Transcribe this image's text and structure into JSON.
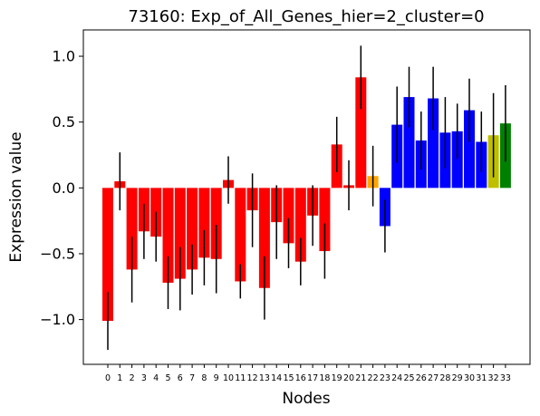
{
  "chart_data": {
    "type": "bar",
    "title": "73160: Exp_of_All_Genes_hier=2_cluster=0",
    "xlabel": "Nodes",
    "ylabel": "Expression value",
    "ylim": [
      -1.34,
      1.2
    ],
    "yticks": [
      -1.0,
      -0.5,
      0.0,
      0.5,
      1.0
    ],
    "ytick_labels": [
      "−1.0",
      "−0.5",
      "0.0",
      "0.5",
      "1.0"
    ],
    "grid": false,
    "legend": "none",
    "categories": [
      "0",
      "1",
      "2",
      "3",
      "4",
      "5",
      "6",
      "7",
      "8",
      "9",
      "10",
      "11",
      "12",
      "13",
      "14",
      "15",
      "16",
      "17",
      "18",
      "19",
      "20",
      "21",
      "22",
      "23",
      "24",
      "25",
      "26",
      "27",
      "28",
      "29",
      "30",
      "31",
      "32",
      "33"
    ],
    "values": [
      -1.01,
      0.05,
      -0.62,
      -0.33,
      -0.37,
      -0.72,
      -0.69,
      -0.62,
      -0.53,
      -0.54,
      0.06,
      -0.71,
      -0.17,
      -0.76,
      -0.26,
      -0.42,
      -0.56,
      -0.21,
      -0.48,
      0.33,
      0.02,
      0.84,
      0.09,
      -0.29,
      0.48,
      0.69,
      0.36,
      0.68,
      0.42,
      0.43,
      0.59,
      0.35,
      0.4,
      0.49
    ],
    "errors": [
      0.22,
      0.22,
      0.25,
      0.21,
      0.19,
      0.2,
      0.24,
      0.19,
      0.21,
      0.26,
      0.18,
      0.13,
      0.28,
      0.24,
      0.28,
      0.19,
      0.18,
      0.23,
      0.21,
      0.21,
      0.19,
      0.24,
      0.23,
      0.2,
      0.29,
      0.23,
      0.22,
      0.24,
      0.27,
      0.21,
      0.24,
      0.23,
      0.32,
      0.29
    ],
    "colors": [
      "#ff0000",
      "#ff0000",
      "#ff0000",
      "#ff0000",
      "#ff0000",
      "#ff0000",
      "#ff0000",
      "#ff0000",
      "#ff0000",
      "#ff0000",
      "#ff0000",
      "#ff0000",
      "#ff0000",
      "#ff0000",
      "#ff0000",
      "#ff0000",
      "#ff0000",
      "#ff0000",
      "#ff0000",
      "#ff0000",
      "#ff0000",
      "#ff0000",
      "#ffa500",
      "#0000ff",
      "#0000ff",
      "#0000ff",
      "#0000ff",
      "#0000ff",
      "#0000ff",
      "#0000ff",
      "#0000ff",
      "#0000ff",
      "#bfbf00",
      "#008000"
    ],
    "error_color": "#000000"
  }
}
